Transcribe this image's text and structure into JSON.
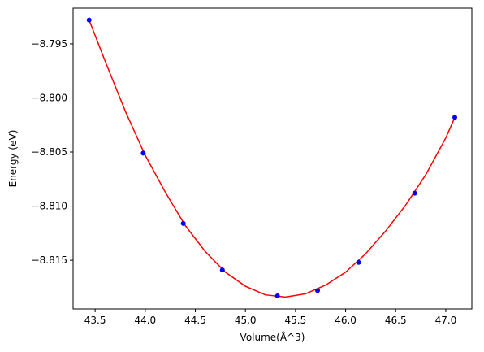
{
  "chart_data": {
    "type": "scatter",
    "title": "",
    "xlabel": "Volume(Å^3)",
    "ylabel": "Energy (eV)",
    "xlim": [
      43.28,
      47.26
    ],
    "ylim": [
      -8.8195,
      -8.7917
    ],
    "xticks": [
      43.5,
      44.0,
      44.5,
      45.0,
      45.5,
      46.0,
      46.5,
      47.0
    ],
    "xtick_labels": [
      "43.5",
      "44.0",
      "44.5",
      "45.0",
      "45.5",
      "46.0",
      "46.5",
      "47.0"
    ],
    "yticks": [
      -8.795,
      -8.8,
      -8.805,
      -8.81,
      -8.815
    ],
    "ytick_labels": [
      "−8.795",
      "−8.800",
      "−8.805",
      "−8.810",
      "−8.815"
    ],
    "grid": false,
    "series": [
      {
        "kind": "points",
        "color": "#0000ff",
        "x": [
          43.44,
          43.98,
          44.38,
          44.77,
          45.32,
          45.72,
          46.13,
          46.69,
          47.09
        ],
        "y": [
          -8.7928,
          -8.8051,
          -8.8116,
          -8.8159,
          -8.8183,
          -8.8178,
          -8.8152,
          -8.8088,
          -8.8018
        ]
      },
      {
        "kind": "fit-curve",
        "color": "#ff0000",
        "x": [
          43.44,
          43.6,
          43.8,
          44.0,
          44.2,
          44.4,
          44.6,
          44.8,
          45.0,
          45.2,
          45.4,
          45.6,
          45.8,
          46.0,
          46.2,
          46.4,
          46.6,
          46.8,
          47.0,
          47.09
        ],
        "y": [
          -8.7928,
          -8.7966,
          -8.8012,
          -8.8053,
          -8.8087,
          -8.8118,
          -8.8142,
          -8.8161,
          -8.8174,
          -8.8182,
          -8.8184,
          -8.8181,
          -8.8173,
          -8.8161,
          -8.8144,
          -8.8123,
          -8.8099,
          -8.8071,
          -8.8037,
          -8.8018
        ]
      }
    ]
  }
}
